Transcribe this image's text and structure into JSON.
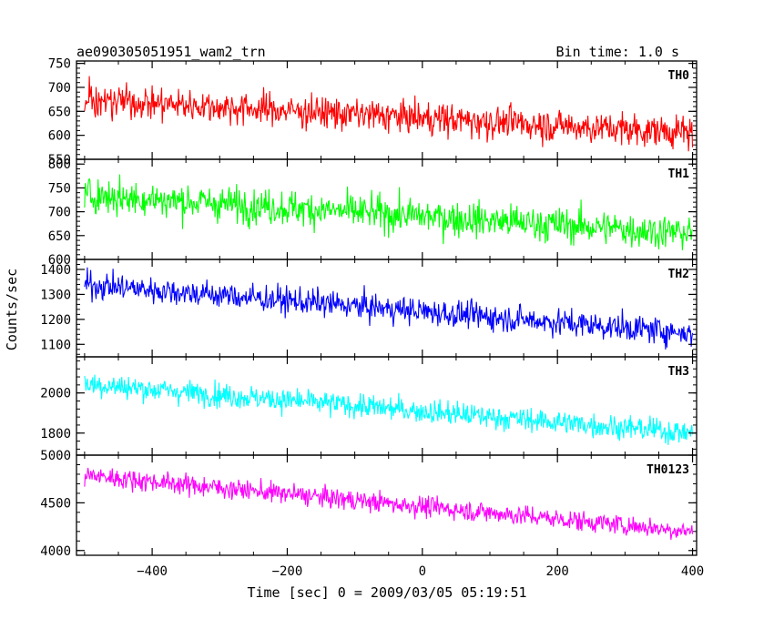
{
  "header": {
    "left_title": "ae090305051951_wam2_trn",
    "right_title": "Bin time: 1.0 s"
  },
  "axes": {
    "xlabel": "Time [sec] 0 = 2009/03/05 05:19:51",
    "ylabel": "Counts/sec",
    "xlim": [
      -512,
      406
    ],
    "xticks": [
      -400,
      -200,
      0,
      200,
      400
    ],
    "xtick_labels": [
      "−400",
      "−200",
      "0",
      "200",
      "400"
    ]
  },
  "chart_data": {
    "type": "line",
    "x_range": [
      -500,
      400
    ],
    "bin_time": 1.0,
    "panels": [
      {
        "name": "TH0",
        "color": "#ff0000",
        "ylim": [
          550,
          755
        ],
        "yticks": [
          550,
          600,
          650,
          700,
          750
        ],
        "ytick_labels": [
          "550",
          "600",
          "650",
          "700",
          "750"
        ],
        "trend_start": 675,
        "trend_end": 605,
        "noise_sd": 24
      },
      {
        "name": "TH1",
        "color": "#00ff00",
        "ylim": [
          600,
          810
        ],
        "yticks": [
          600,
          650,
          700,
          750,
          800
        ],
        "ytick_labels": [
          "600",
          "650",
          "700",
          "750",
          "800"
        ],
        "trend_start": 735,
        "trend_end": 655,
        "noise_sd": 26
      },
      {
        "name": "TH2",
        "color": "#0000ff",
        "ylim": [
          1050,
          1440
        ],
        "yticks": [
          1100,
          1200,
          1300,
          1400
        ],
        "ytick_labels": [
          "1100",
          "1200",
          "1300",
          "1400"
        ],
        "trend_start": 1340,
        "trend_end": 1145,
        "noise_sd": 38
      },
      {
        "name": "TH3",
        "color": "#00ffff",
        "ylim": [
          1690,
          2180
        ],
        "yticks": [
          1800,
          2000
        ],
        "ytick_labels": [
          "1800",
          "2000"
        ],
        "trend_start": 2045,
        "trend_end": 1800,
        "noise_sd": 42
      },
      {
        "name": "TH0123",
        "color": "#ff00ff",
        "ylim": [
          3950,
          5000
        ],
        "yticks": [
          4000,
          4500,
          5000
        ],
        "ytick_labels": [
          "4000",
          "4500",
          "5000"
        ],
        "trend_start": 4790,
        "trend_end": 4200,
        "noise_sd": 75
      }
    ]
  }
}
